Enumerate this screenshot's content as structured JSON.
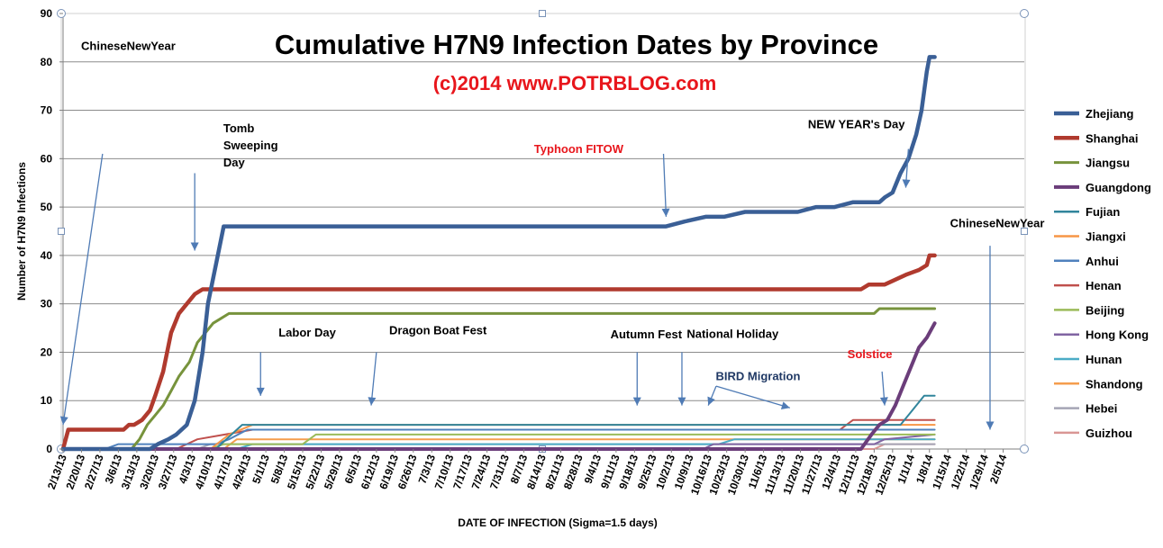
{
  "chart_data": {
    "type": "line",
    "title": "Cumulative H7N9 Infection Dates by Province",
    "subtitle": "(c)2014  www.POTRBLOG.com",
    "xlabel": "DATE OF INFECTION  (Sigma=1.5 days)",
    "ylabel": "Number of H7N9 Infections",
    "ylim": [
      0,
      90
    ],
    "yticks": [
      0,
      10,
      20,
      30,
      40,
      50,
      60,
      70,
      80,
      90
    ],
    "grid": true,
    "legend_position": "right",
    "x_tick_labels": [
      "2/13/13",
      "2/20/13",
      "2/27/13",
      "3/6/13",
      "3/13/13",
      "3/20/13",
      "3/27/13",
      "4/3/13",
      "4/10/13",
      "4/17/13",
      "4/24/13",
      "5/1/13",
      "5/8/13",
      "5/15/13",
      "5/22/13",
      "5/29/13",
      "6/5/13",
      "6/12/13",
      "6/19/13",
      "6/26/13",
      "7/3/13",
      "7/10/13",
      "7/17/13",
      "7/24/13",
      "7/31/13",
      "8/7/13",
      "8/14/13",
      "8/21/13",
      "8/28/13",
      "9/4/13",
      "9/11/13",
      "9/18/13",
      "9/25/13",
      "10/2/13",
      "10/9/13",
      "10/16/13",
      "10/23/13",
      "10/30/13",
      "11/6/13",
      "11/13/13",
      "11/20/13",
      "11/27/13",
      "12/4/13",
      "12/11/13",
      "12/18/13",
      "12/25/13",
      "1/1/14",
      "1/8/14",
      "1/15/14",
      "1/22/14",
      "1/29/14",
      "2/5/14"
    ],
    "series": [
      {
        "name": "Zhejiang",
        "color": "#3a5f96",
        "width": 4.5,
        "x": [
          "2/13/13",
          "3/18/13",
          "3/21/13",
          "3/25/13",
          "3/28/13",
          "4/1/13",
          "4/4/13",
          "4/7/13",
          "4/9/13",
          "4/12/13",
          "4/15/13",
          "9/30/13",
          "10/7/13",
          "10/15/13",
          "10/22/13",
          "10/30/13",
          "11/5/13",
          "11/12/13",
          "11/19/13",
          "11/26/13",
          "12/3/13",
          "12/10/13",
          "12/17/13",
          "12/20/13",
          "12/22/13",
          "12/25/13",
          "12/28/13",
          "12/31/13",
          "1/3/14",
          "1/5/14",
          "1/7/14",
          "1/8/14",
          "1/10/14"
        ],
        "values": [
          0,
          0,
          1,
          2,
          3,
          5,
          10,
          20,
          30,
          38,
          46,
          46,
          47,
          48,
          48,
          49,
          49,
          49,
          49,
          50,
          50,
          51,
          51,
          51,
          52,
          53,
          57,
          60,
          65,
          70,
          78,
          81,
          81
        ]
      },
      {
        "name": "Shanghai",
        "color": "#b03a2e",
        "width": 4.5,
        "x": [
          "2/13/13",
          "2/15/13",
          "3/8/13",
          "3/10/13",
          "3/12/13",
          "3/15/13",
          "3/18/13",
          "3/20/13",
          "3/23/13",
          "3/26/13",
          "3/29/13",
          "4/1/13",
          "4/4/13",
          "4/7/13",
          "12/13/13",
          "12/16/13",
          "12/22/13",
          "12/30/13",
          "1/4/14",
          "1/7/14",
          "1/8/14",
          "1/10/14"
        ],
        "values": [
          0,
          4,
          4,
          5,
          5,
          6,
          8,
          11,
          16,
          24,
          28,
          30,
          32,
          33,
          33,
          34,
          34,
          36,
          37,
          38,
          40,
          40
        ]
      },
      {
        "name": "Jiangsu",
        "color": "#77933c",
        "width": 3,
        "x": [
          "2/13/13",
          "3/11/13",
          "3/14/13",
          "3/17/13",
          "3/20/13",
          "3/23/13",
          "3/26/13",
          "3/29/13",
          "4/2/13",
          "4/5/13",
          "4/8/13",
          "4/11/13",
          "4/14/13",
          "4/17/13",
          "12/18/13",
          "12/20/13",
          "1/10/14"
        ],
        "values": [
          0,
          0,
          2,
          5,
          7,
          9,
          12,
          15,
          18,
          22,
          24,
          26,
          27,
          28,
          28,
          29,
          29
        ]
      },
      {
        "name": "Guangdong",
        "color": "#6b3d7a",
        "width": 4,
        "x": [
          "2/13/13",
          "12/13/13",
          "12/17/13",
          "12/20/13",
          "12/23/13",
          "12/26/13",
          "12/29/13",
          "1/1/14",
          "1/4/14",
          "1/7/14",
          "1/10/14"
        ],
        "values": [
          0,
          0,
          3,
          5,
          6,
          9,
          13,
          17,
          21,
          23,
          26
        ]
      },
      {
        "name": "Fujian",
        "color": "#31859c",
        "width": 2,
        "x": [
          "2/13/13",
          "4/12/13",
          "4/16/13",
          "4/22/13",
          "12/13/13",
          "12/18/13",
          "12/21/13",
          "12/26/13",
          "12/28/13",
          "12/31/13",
          "1/3/14",
          "1/6/14",
          "1/10/14"
        ],
        "values": [
          0,
          0,
          2,
          5,
          5,
          5,
          5,
          5,
          5,
          7,
          9,
          11,
          11
        ]
      },
      {
        "name": "Jiangxi",
        "color": "#f79646",
        "width": 2,
        "x": [
          "2/13/13",
          "4/10/13",
          "4/17/13",
          "4/26/13",
          "1/10/14"
        ],
        "values": [
          0,
          0,
          3,
          5,
          5
        ]
      },
      {
        "name": "Anhui",
        "color": "#4f81bd",
        "width": 2,
        "x": [
          "2/13/13",
          "3/1/13",
          "3/6/13",
          "4/12/13",
          "4/17/13",
          "4/24/13",
          "12/2/13",
          "1/10/14"
        ],
        "values": [
          0,
          0,
          1,
          1,
          2,
          4,
          4,
          4
        ]
      },
      {
        "name": "Henan",
        "color": "#c0504d",
        "width": 2,
        "x": [
          "2/13/13",
          "3/28/13",
          "4/5/13",
          "4/26/13",
          "12/5/13",
          "12/10/13",
          "1/10/14"
        ],
        "values": [
          0,
          0,
          2,
          4,
          4,
          6,
          6
        ]
      },
      {
        "name": "Beijing",
        "color": "#9bbb59",
        "width": 2,
        "x": [
          "2/13/13",
          "4/10/13",
          "4/15/13",
          "5/15/13",
          "5/20/13",
          "1/10/14"
        ],
        "values": [
          0,
          0,
          1,
          1,
          3,
          3
        ]
      },
      {
        "name": "Hong Kong",
        "color": "#8064a2",
        "width": 2,
        "x": [
          "2/13/13",
          "10/14/13",
          "10/18/13",
          "12/18/13",
          "12/22/13",
          "1/10/14"
        ],
        "values": [
          0,
          0,
          1,
          1,
          2,
          3
        ]
      },
      {
        "name": "Hunan",
        "color": "#4bacc6",
        "width": 2,
        "x": [
          "2/13/13",
          "4/20/13",
          "4/26/13",
          "10/20/13",
          "10/26/13",
          "1/10/14"
        ],
        "values": [
          0,
          0,
          1,
          1,
          2,
          2
        ]
      },
      {
        "name": "Shandong",
        "color": "#f59d4d",
        "width": 2,
        "x": [
          "2/13/13",
          "4/15/13",
          "4/20/13",
          "1/10/14"
        ],
        "values": [
          0,
          0,
          2,
          2
        ]
      },
      {
        "name": "Hebei",
        "color": "#a5a5b5",
        "width": 2,
        "x": [
          "2/13/13",
          "4/5/13",
          "4/10/13",
          "11/12/13",
          "11/18/13",
          "1/10/14"
        ],
        "values": [
          0,
          0,
          1,
          1,
          1,
          1
        ]
      },
      {
        "name": "Guizhou",
        "color": "#d99694",
        "width": 2,
        "x": [
          "2/13/13",
          "12/18/13",
          "12/22/13",
          "1/10/14"
        ],
        "values": [
          0,
          0,
          1,
          1
        ]
      }
    ],
    "annotations": [
      {
        "lines": [
          "ChineseNewYear"
        ],
        "color": "#000000",
        "anchor_x": "2/13/13",
        "anchor_y": 82.5,
        "arrow_from": [
          "2/28/13",
          61
        ],
        "arrow_to": [
          "2/13/13",
          5
        ]
      },
      {
        "lines": [
          "Tomb",
          "Sweeping",
          "Day"
        ],
        "color": "#000000",
        "anchor_x": "4/8/13",
        "anchor_y": 65.5,
        "arrow_from": [
          "4/4/13",
          57
        ],
        "arrow_to": [
          "4/4/13",
          41
        ]
      },
      {
        "lines": [
          "Labor Day"
        ],
        "color": "#000000",
        "anchor_x": "4/29/13",
        "anchor_y": 23.2,
        "arrow_from": [
          "4/29/13",
          20
        ],
        "arrow_to": [
          "4/29/13",
          11
        ]
      },
      {
        "lines": [
          "Dragon Boat Fest"
        ],
        "color": "#000000",
        "anchor_x": "6/10/13",
        "anchor_y": 23.7,
        "arrow_from": [
          "6/12/13",
          20
        ],
        "arrow_to": [
          "6/10/13",
          9
        ]
      },
      {
        "lines": [
          "Autumn Fest"
        ],
        "color": "#000000",
        "anchor_x": "9/2/13",
        "anchor_y": 22.9,
        "arrow_from": [
          "9/19/13",
          20
        ],
        "arrow_to": [
          "9/19/13",
          9
        ]
      },
      {
        "lines": [
          "National Holiday"
        ],
        "color": "#000000",
        "anchor_x": "10/1/13",
        "anchor_y": 23.0,
        "arrow_from": [
          "10/6/13",
          20
        ],
        "arrow_to": [
          "10/6/13",
          9
        ]
      },
      {
        "lines": [
          "Typhoon FITOW"
        ],
        "color": "#e8161c",
        "anchor_x": "8/4/13",
        "anchor_y": 61.2,
        "arrow_from": [
          "9/29/13",
          61
        ],
        "arrow_to": [
          "9/30/13",
          48
        ]
      },
      {
        "lines": [
          "BIRD Migration"
        ],
        "color": "#1f3864",
        "anchor_x": "10/12/13",
        "anchor_y": 14.2,
        "arrow_from": [
          "10/19/13",
          13
        ],
        "arrow_to": [
          "11/16/13",
          8.5
        ]
      },
      {
        "lines": [
          "NEW YEAR's Day"
        ],
        "color": "#000000",
        "anchor_x": "11/16/13",
        "anchor_y": 66.3,
        "arrow_from": [
          "12/31/13",
          62
        ],
        "arrow_to": [
          "12/30/13",
          54
        ]
      },
      {
        "lines": [
          "Solstice"
        ],
        "color": "#e8161c",
        "anchor_x": "12/1/13",
        "anchor_y": 18.8,
        "arrow_from": [
          "12/21/13",
          16
        ],
        "arrow_to": [
          "12/22/13",
          9
        ]
      },
      {
        "lines": [
          "ChineseNewYear"
        ],
        "color": "#000000",
        "anchor_x": "1/9/14",
        "anchor_y": 45.8,
        "arrow_from": [
          "1/31/14",
          42
        ],
        "arrow_to": [
          "1/31/14",
          4
        ]
      }
    ],
    "extra_arrow_heads": [
      [
        "10/16/13",
        9
      ]
    ]
  }
}
